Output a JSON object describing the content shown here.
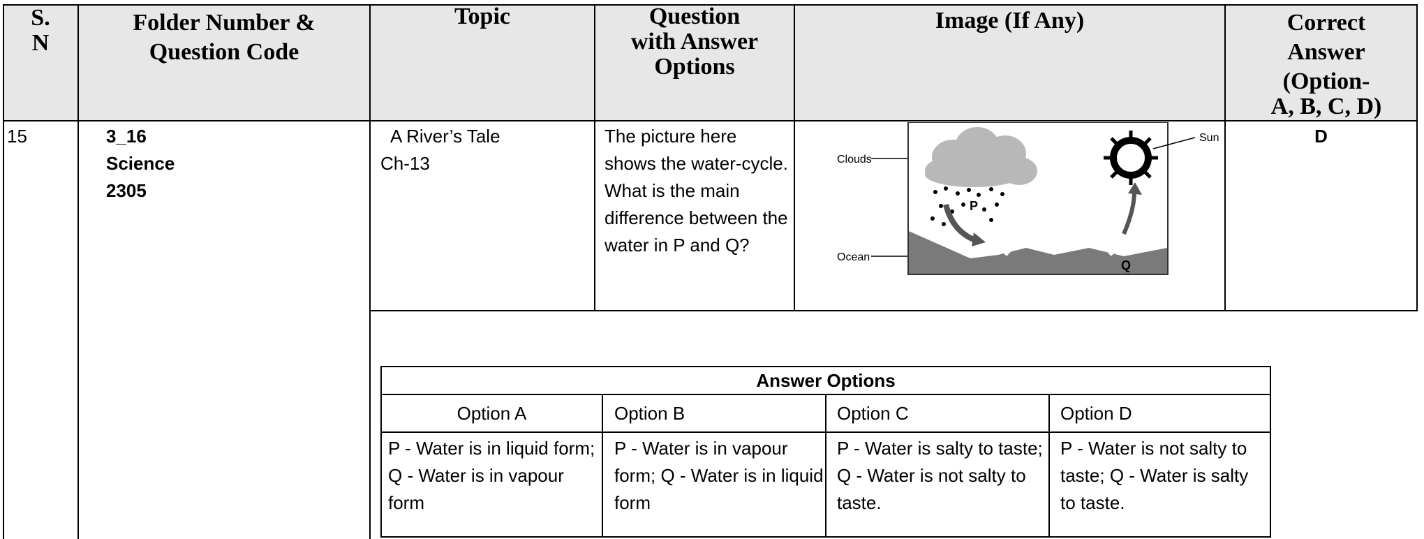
{
  "header": {
    "columns": [
      {
        "lines": [
          "S.",
          "N"
        ]
      },
      {
        "lines": [
          "Folder Number &",
          "Question Code"
        ]
      },
      {
        "lines": [
          "Topic"
        ]
      },
      {
        "lines": [
          "Question",
          "with Answer",
          "Options"
        ]
      },
      {
        "lines": [
          "Image (If Any)"
        ]
      },
      {
        "lines": [
          "Correct",
          "Answer",
          "(Option-",
          "A, B, C, D)"
        ]
      }
    ]
  },
  "row": {
    "sn": "15",
    "code_lines": [
      "3_16",
      "Science",
      "2305"
    ],
    "topic_lines": [
      "A River’s Tale",
      "Ch-13"
    ],
    "question": "The picture here shows the water-cycle. What is the main difference between the water in P and Q?",
    "image_labels": {
      "clouds": "Clouds",
      "ocean": "Ocean",
      "sun": "Sun",
      "p": "P",
      "q": "Q"
    },
    "correct": "D"
  },
  "answer_options": {
    "title": "Answer Options",
    "names": [
      "Option A",
      "Option B",
      "Option C",
      "Option D"
    ],
    "texts": [
      "P - Water is in liquid form; Q - Water is in vapour form",
      "P - Water is in vapour form; Q - Water is in liquid form",
      "P - Water is salty to taste; Q - Water is not salty to taste.",
      "P - Water is not salty to taste; Q - Water is salty to taste."
    ]
  }
}
